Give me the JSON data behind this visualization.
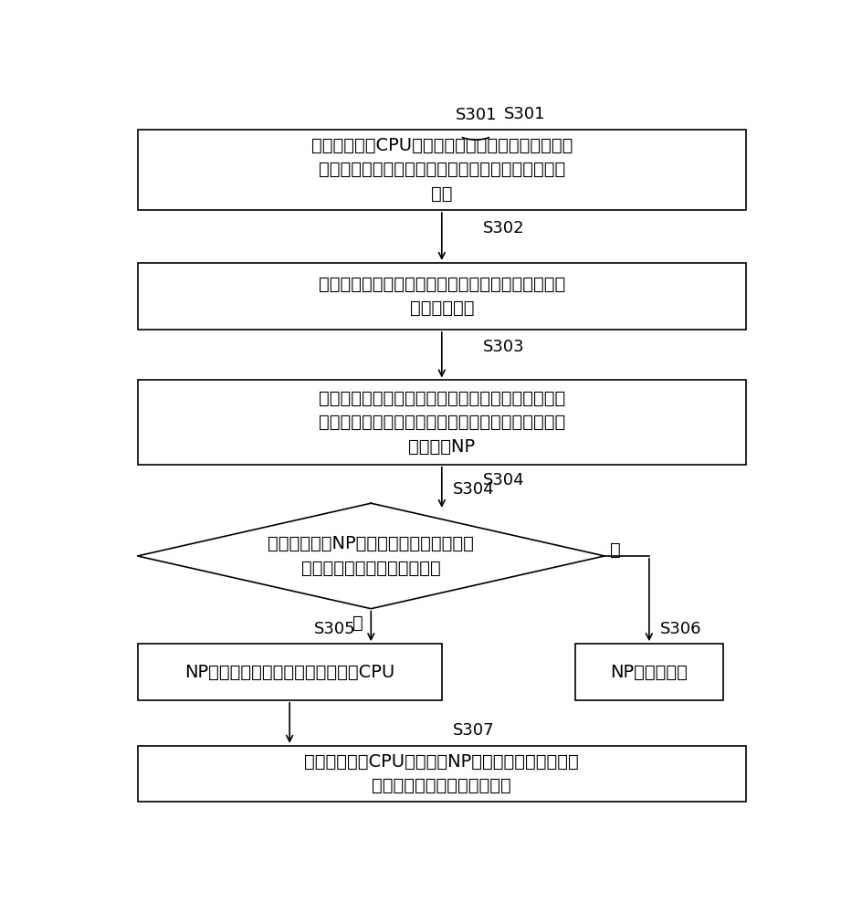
{
  "bg_color": "#ffffff",
  "box_border_color": "#000000",
  "box_fill_color": "#ffffff",
  "font_color": "#000000",
  "font_size": 14,
  "label_font_size": 13,
  "s301_text": "第二设备中的CPU在接收到解除第一设备的第一端口\n的关闭状态的指令后，将生成的指示报文传输至第二\n端口",
  "s302_text": "第二设备的第二端口将生成的指示报文发送给第一设\n备的第一端口",
  "s303_text": "第一设备中处于关闭状态的第一端口接收第二设备的\n第二端口发送的指示报文，并将指示报文发送至第一\n设备中的NP",
  "s304_text": "第一设备中的NP判断所述指示报文是否为\n指示解除端口关闭状态的报文",
  "s305_text": "NP将指示报文传输至第一设备中的CPU",
  "s306_text": "NP丢弃该报文",
  "s307_text": "第一设备中的CPU在接收到NP传输的指示报文后，指\n示第一端口解除端口关闭状态",
  "yes_label": "是",
  "no_label": "否",
  "labels": [
    "S301",
    "S302",
    "S303",
    "S304",
    "S305",
    "S306",
    "S307"
  ]
}
